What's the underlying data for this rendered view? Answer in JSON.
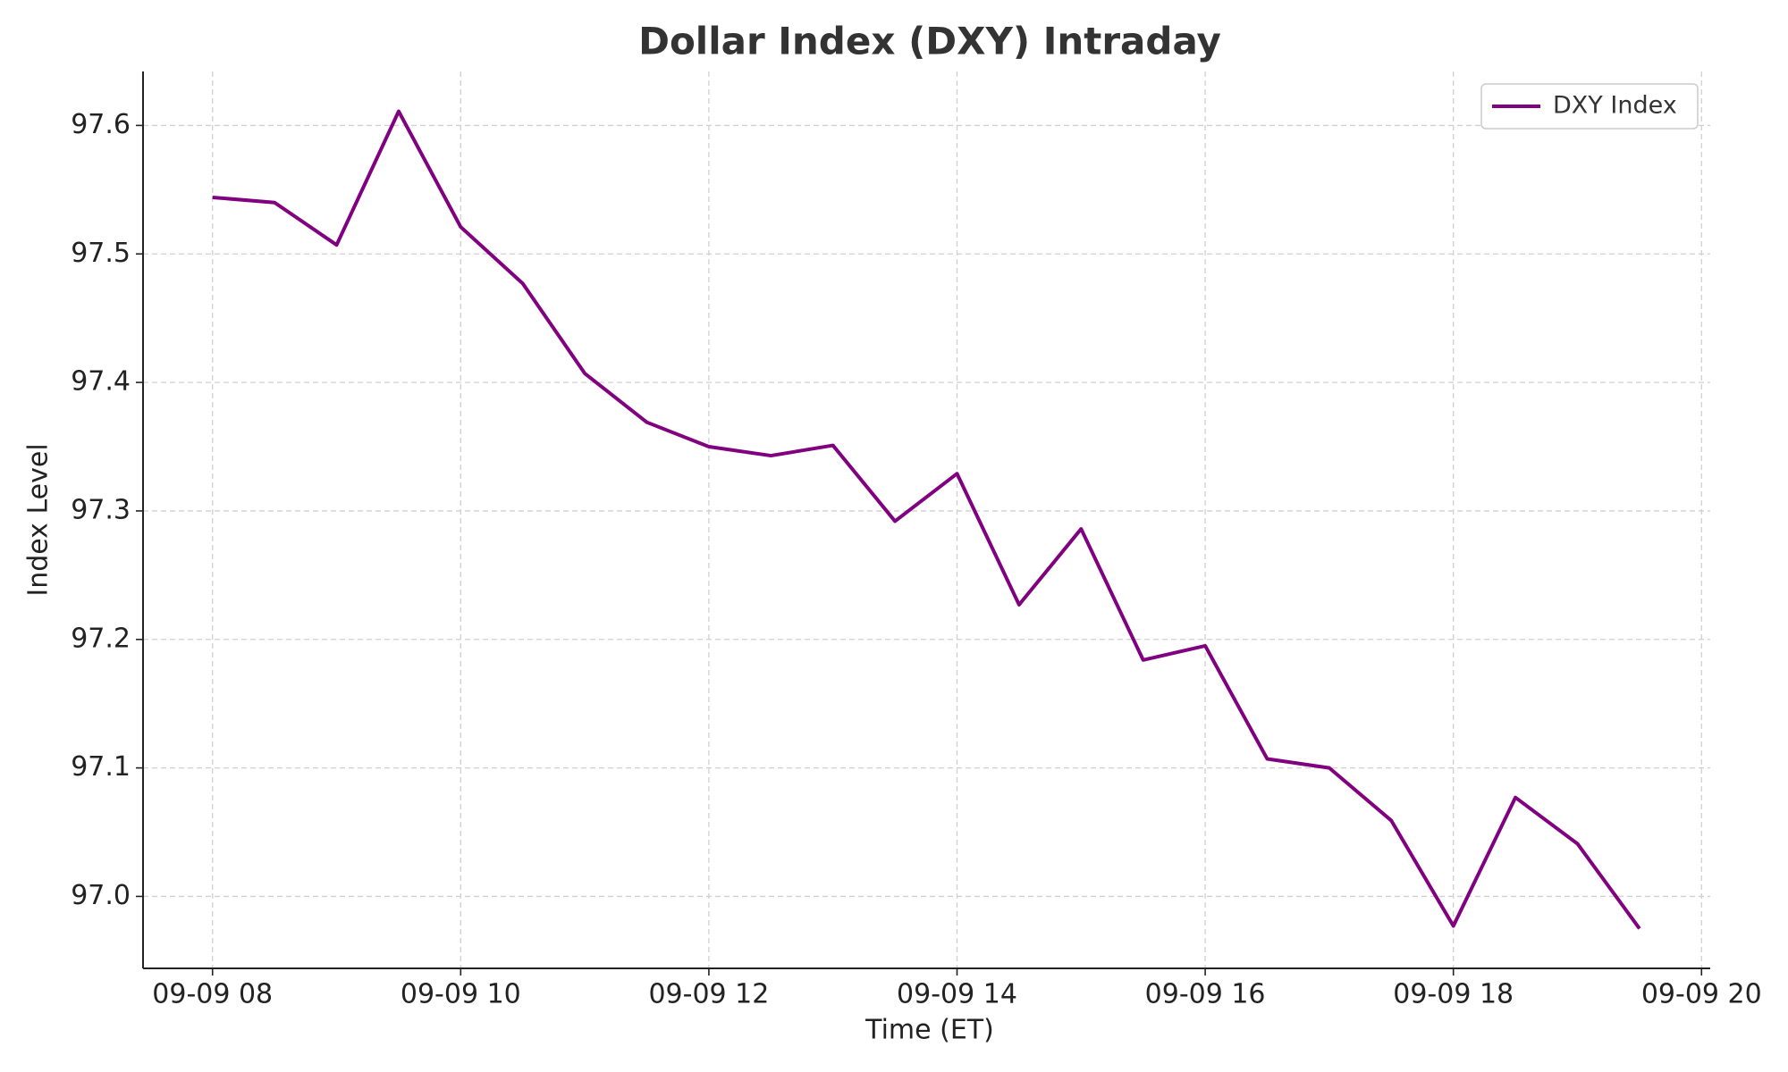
{
  "chart_data": {
    "type": "line",
    "title": "Dollar Index (DXY) Intraday",
    "x_label": "Time (ET)",
    "y_label": "Index Level",
    "x": [
      8,
      8.5,
      9,
      9.5,
      10,
      10.5,
      11,
      11.5,
      12,
      12.5,
      13,
      13.5,
      14,
      14.5,
      15,
      15.5,
      16,
      16.5,
      17,
      17.5,
      18,
      18.5,
      19,
      19.5
    ],
    "series": [
      {
        "name": "DXY Index",
        "color": "#800080",
        "values": [
          97.544,
          97.54,
          97.507,
          97.611,
          97.521,
          97.477,
          97.407,
          97.369,
          97.35,
          97.343,
          97.351,
          97.292,
          97.329,
          97.227,
          97.286,
          97.184,
          97.195,
          97.107,
          97.1,
          97.059,
          96.977,
          97.077,
          97.041,
          96.975
        ]
      }
    ],
    "xlim": [
      7.44,
      20.07
    ],
    "ylim": [
      96.944,
      97.642
    ],
    "xticks": [
      {
        "value": 8,
        "label": "09-09 08"
      },
      {
        "value": 10,
        "label": "09-09 10"
      },
      {
        "value": 12,
        "label": "09-09 12"
      },
      {
        "value": 14,
        "label": "09-09 14"
      },
      {
        "value": 16,
        "label": "09-09 16"
      },
      {
        "value": 18,
        "label": "09-09 18"
      },
      {
        "value": 20,
        "label": "09-09 20"
      }
    ],
    "yticks": [
      {
        "value": 97.0,
        "label": "97.0"
      },
      {
        "value": 97.1,
        "label": "97.1"
      },
      {
        "value": 97.2,
        "label": "97.2"
      },
      {
        "value": 97.3,
        "label": "97.3"
      },
      {
        "value": 97.4,
        "label": "97.4"
      },
      {
        "value": 97.5,
        "label": "97.5"
      },
      {
        "value": 97.6,
        "label": "97.6"
      }
    ],
    "grid": true,
    "legend": "upper right"
  }
}
